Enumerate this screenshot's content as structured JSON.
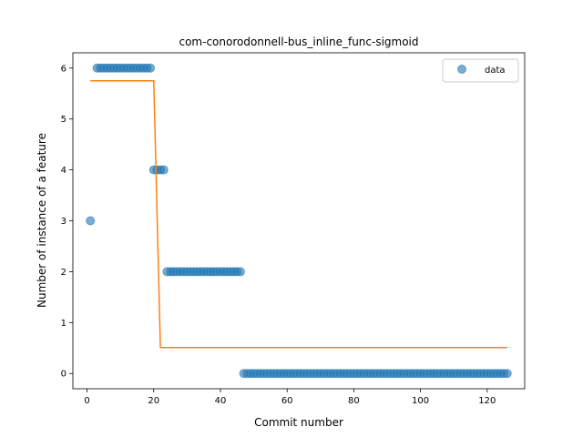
{
  "chart_data": {
    "type": "scatter",
    "title": "com-conorodonnell-bus_inline_func-sigmoid",
    "xlabel": "Commit number",
    "ylabel": "Number of instance of a feature",
    "xlim": [
      -4.25,
      131.25
    ],
    "ylim": [
      -0.3,
      6.3
    ],
    "xticks": [
      0,
      20,
      40,
      60,
      80,
      100,
      120
    ],
    "yticks": [
      0,
      1,
      2,
      3,
      4,
      5,
      6
    ],
    "grid": false,
    "legend_position": "top-right",
    "series": [
      {
        "name": "data",
        "kind": "scatter",
        "color": "#1f77b4",
        "x": [
          1,
          3,
          4,
          5,
          6,
          7,
          8,
          9,
          10,
          11,
          12,
          13,
          14,
          15,
          16,
          17,
          18,
          19,
          20,
          21,
          22,
          23,
          24,
          25,
          26,
          27,
          28,
          29,
          30,
          31,
          32,
          33,
          34,
          35,
          36,
          37,
          38,
          39,
          40,
          41,
          42,
          43,
          44,
          45,
          46,
          47,
          48,
          49,
          50,
          51,
          52,
          53,
          54,
          55,
          56,
          57,
          58,
          59,
          60,
          61,
          62,
          63,
          64,
          65,
          66,
          67,
          68,
          69,
          70,
          71,
          72,
          73,
          74,
          75,
          76,
          77,
          78,
          79,
          80,
          81,
          82,
          83,
          84,
          85,
          86,
          87,
          88,
          89,
          90,
          91,
          92,
          93,
          94,
          95,
          96,
          97,
          98,
          99,
          100,
          101,
          102,
          103,
          104,
          105,
          106,
          107,
          108,
          109,
          110,
          111,
          112,
          113,
          114,
          115,
          116,
          117,
          118,
          119,
          120,
          121,
          122,
          123,
          124,
          125,
          126
        ],
        "y": [
          3,
          6,
          6,
          6,
          6,
          6,
          6,
          6,
          6,
          6,
          6,
          6,
          6,
          6,
          6,
          6,
          6,
          6,
          4,
          4,
          4,
          4,
          2,
          2,
          2,
          2,
          2,
          2,
          2,
          2,
          2,
          2,
          2,
          2,
          2,
          2,
          2,
          2,
          2,
          2,
          2,
          2,
          2,
          2,
          2,
          0,
          0,
          0,
          0,
          0,
          0,
          0,
          0,
          0,
          0,
          0,
          0,
          0,
          0,
          0,
          0,
          0,
          0,
          0,
          0,
          0,
          0,
          0,
          0,
          0,
          0,
          0,
          0,
          0,
          0,
          0,
          0,
          0,
          0,
          0,
          0,
          0,
          0,
          0,
          0,
          0,
          0,
          0,
          0,
          0,
          0,
          0,
          0,
          0,
          0,
          0,
          0,
          0,
          0,
          0,
          0,
          0,
          0,
          0,
          0,
          0,
          0,
          0,
          0,
          0,
          0,
          0,
          0,
          0,
          0,
          0,
          0,
          0,
          0,
          0,
          0,
          0,
          0,
          0,
          0
        ]
      },
      {
        "name": "",
        "kind": "line",
        "color": "#ff7f0e",
        "x": [
          1,
          20,
          22,
          126
        ],
        "y": [
          5.75,
          5.75,
          0.51,
          0.51
        ]
      }
    ]
  }
}
